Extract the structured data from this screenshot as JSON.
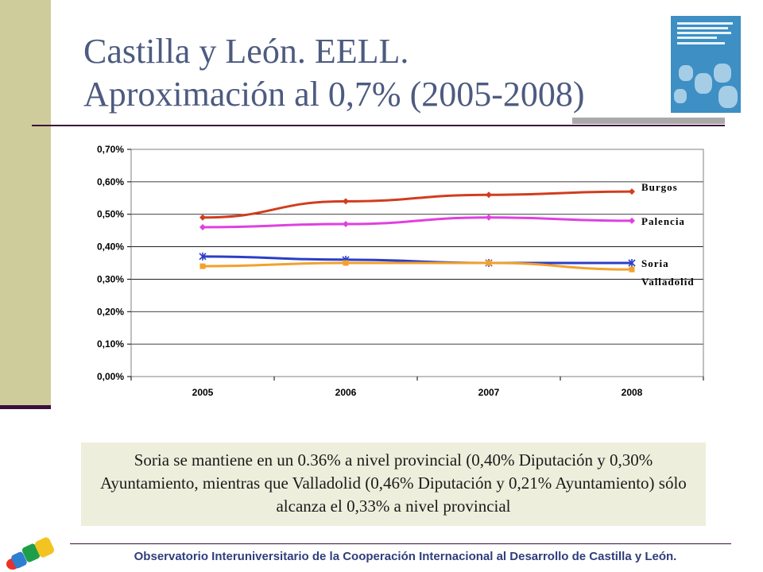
{
  "slide": {
    "title_line1": "Castilla y León. EELL.",
    "title_line2": "Aproximación al 0,7% (2005-2008)",
    "note": "Soria se  mantiene en un 0.36% a nivel provincial (0,40% Diputación y 0,30% Ayuntamiento, mientras que Valladolid (0,46% Diputación y 0,21% Ayuntamiento) sólo alcanza el 0,33% a nivel provincial",
    "footer": "Observatorio Interuniversitario de la Cooperación Internacional al Desarrollo de Castilla y León."
  },
  "colors": {
    "title": "#4d5b80",
    "accent_bar": "#cfcc9c",
    "note_bg": "#eeeedc",
    "footer": "#2f3e7c"
  },
  "chart_data": {
    "type": "line",
    "title": "",
    "xlabel": "",
    "ylabel": "",
    "x": [
      "2005",
      "2006",
      "2007",
      "2008"
    ],
    "ylim": [
      0,
      0.007
    ],
    "yticks": [
      0,
      0.001,
      0.002,
      0.003,
      0.004,
      0.005,
      0.006,
      0.007
    ],
    "ytick_labels": [
      "0,00%",
      "0,10%",
      "0,20%",
      "0,30%",
      "0,40%",
      "0,50%",
      "0,60%",
      "0,70%"
    ],
    "grid": true,
    "legend": "right (labels at line ends)",
    "series": [
      {
        "name": "Burgos",
        "values": [
          0.0049,
          0.0054,
          0.0056,
          0.0057
        ],
        "color": "#d13d1e",
        "marker": "diamond"
      },
      {
        "name": "Palencia",
        "values": [
          0.0046,
          0.0047,
          0.0049,
          0.0048
        ],
        "color": "#e040e0",
        "marker": "diamond"
      },
      {
        "name": "Soria",
        "values": [
          0.0037,
          0.0036,
          0.0035,
          0.0035
        ],
        "color": "#2b3ec7",
        "marker": "star"
      },
      {
        "name": "Valladolid",
        "values": [
          0.0034,
          0.0035,
          0.0035,
          0.0033
        ],
        "color": "#f2a12c",
        "marker": "square"
      }
    ]
  }
}
